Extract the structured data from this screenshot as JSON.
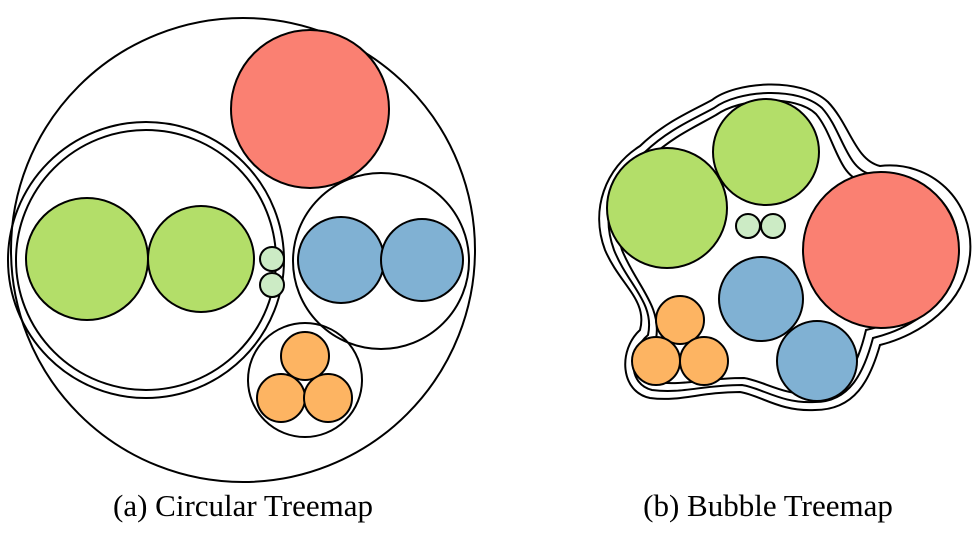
{
  "colors": {
    "red": "#fa8072",
    "green": "#b3de69",
    "light_green": "#ccebc5",
    "blue": "#80b1d3",
    "orange": "#fdb462",
    "outline": "#000000"
  },
  "panels": [
    {
      "id": "circular",
      "caption": "(a) Circular Treemap"
    },
    {
      "id": "bubble",
      "caption": "(b) Bubble Treemap"
    }
  ]
}
